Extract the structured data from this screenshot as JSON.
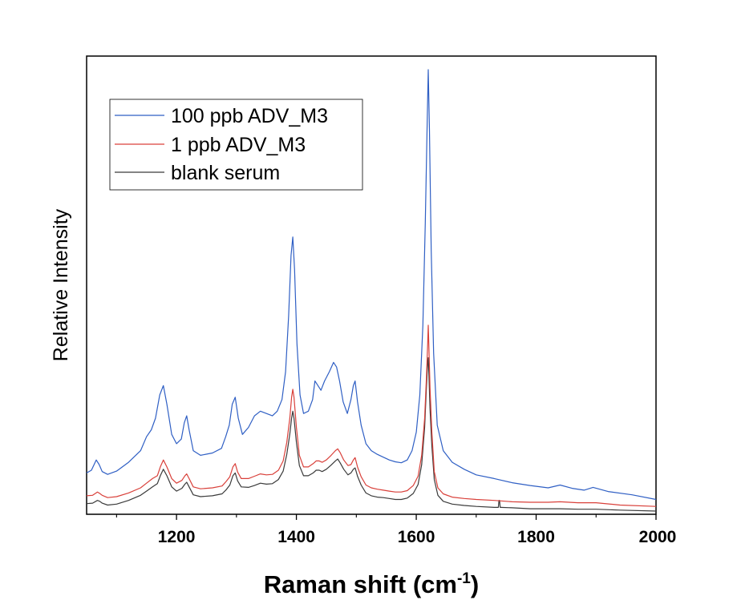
{
  "chart_data": {
    "type": "line",
    "xlabel": "Raman shift (cm",
    "xlabel_superscript": "-1",
    "xlabel_close": ")",
    "ylabel": "Relative Intensity",
    "xlim": [
      1050,
      2000
    ],
    "ylim": [
      0,
      100
    ],
    "xticks": [
      1200,
      1400,
      1600,
      1800,
      2000
    ],
    "xticks_minor": [
      1100,
      1300,
      1500,
      1700,
      1900
    ],
    "grid": false,
    "legend_position": "top-left",
    "series": [
      {
        "name": "100 ppb ADV_M3",
        "color": "#2f5fc4",
        "x": [
          1050,
          1058,
          1066,
          1071,
          1076,
          1085,
          1100,
          1120,
          1140,
          1150,
          1158,
          1165,
          1172,
          1178,
          1184,
          1192,
          1200,
          1208,
          1213,
          1217,
          1221,
          1228,
          1240,
          1260,
          1275,
          1282,
          1288,
          1293,
          1298,
          1303,
          1310,
          1320,
          1330,
          1340,
          1350,
          1360,
          1368,
          1376,
          1382,
          1387,
          1391,
          1394,
          1397,
          1401,
          1406,
          1412,
          1420,
          1427,
          1431,
          1436,
          1441,
          1447,
          1455,
          1462,
          1467,
          1472,
          1478,
          1485,
          1491,
          1495,
          1498,
          1502,
          1508,
          1516,
          1525,
          1535,
          1545,
          1555,
          1565,
          1575,
          1585,
          1593,
          1600,
          1606,
          1611,
          1615,
          1618,
          1620,
          1622,
          1625,
          1629,
          1635,
          1645,
          1660,
          1680,
          1700,
          1730,
          1760,
          1790,
          1820,
          1840,
          1860,
          1880,
          1895,
          1920,
          1960,
          2000
        ],
        "y": [
          8.2,
          8.8,
          11,
          10,
          8.5,
          7.9,
          8.6,
          10.5,
          13,
          16,
          17.5,
          20,
          25,
          27,
          23,
          16.5,
          14.5,
          15.5,
          19,
          20.5,
          17.5,
          13,
          12,
          12.5,
          13.5,
          16,
          18.5,
          23,
          24.5,
          20,
          16.5,
          18,
          20.5,
          21.5,
          21,
          20.5,
          21.5,
          24,
          30,
          42,
          55,
          59,
          52,
          36,
          25,
          21,
          21.5,
          24,
          28,
          27,
          26,
          28,
          30,
          32,
          31,
          28,
          23.5,
          21,
          24,
          27,
          28,
          23.5,
          18.5,
          14.5,
          13,
          12.2,
          11.6,
          11,
          10.6,
          10.4,
          11,
          13,
          17,
          25,
          40,
          62,
          82,
          95,
          82,
          56,
          34,
          18.5,
          13,
          10.5,
          9,
          7.8,
          7,
          6.1,
          5.5,
          5,
          5.6,
          4.9,
          4.5,
          5.1,
          4.2,
          3.5,
          2.5
        ]
      },
      {
        "name": "1 ppb ADV_M3",
        "color": "#d9403a",
        "x": [
          1050,
          1060,
          1068,
          1072,
          1076,
          1085,
          1100,
          1120,
          1140,
          1150,
          1160,
          1168,
          1173,
          1178,
          1184,
          1192,
          1200,
          1209,
          1214,
          1217,
          1221,
          1228,
          1240,
          1260,
          1276,
          1283,
          1289,
          1294,
          1298,
          1302,
          1308,
          1320,
          1330,
          1340,
          1350,
          1360,
          1370,
          1378,
          1384,
          1389,
          1392,
          1394,
          1396,
          1400,
          1405,
          1412,
          1420,
          1428,
          1433,
          1438,
          1443,
          1450,
          1458,
          1465,
          1469,
          1473,
          1479,
          1486,
          1491,
          1495,
          1498,
          1502,
          1508,
          1516,
          1525,
          1535,
          1545,
          1555,
          1565,
          1575,
          1585,
          1595,
          1603,
          1609,
          1614,
          1617,
          1619,
          1620,
          1621,
          1623,
          1626,
          1630,
          1636,
          1645,
          1660,
          1680,
          1700,
          1730,
          1760,
          1790,
          1820,
          1840,
          1870,
          1900,
          1940,
          2000
        ],
        "y": [
          3.3,
          3.4,
          4.1,
          3.8,
          3.4,
          2.9,
          3.1,
          3.9,
          5,
          6,
          7,
          7.6,
          9.5,
          11,
          9.5,
          7,
          6,
          6.6,
          7.6,
          8,
          7,
          5.2,
          4.8,
          5,
          5.4,
          6.4,
          7.4,
          9.5,
          10.2,
          8.4,
          7,
          7,
          7.5,
          8,
          7.8,
          7.9,
          8.8,
          10.8,
          14.8,
          20,
          24.5,
          26.2,
          24.5,
          18,
          12,
          9.5,
          9.5,
          10.2,
          10.8,
          10.8,
          10.5,
          11,
          12,
          13,
          13.4,
          12.6,
          11,
          9.8,
          10,
          11,
          11.5,
          9.5,
          7.4,
          5.6,
          5,
          4.7,
          4.5,
          4.3,
          4.1,
          4.1,
          4.4,
          5.5,
          7.5,
          12,
          20,
          29,
          36,
          40,
          36,
          26.5,
          17,
          8.5,
          5,
          3.7,
          3,
          2.7,
          2.5,
          2.3,
          2,
          1.9,
          1.9,
          2,
          1.8,
          1.8,
          1.3,
          1
        ]
      },
      {
        "name": "blank serum",
        "color": "#3a3a3a",
        "x": [
          1050,
          1060,
          1068,
          1072,
          1076,
          1085,
          1100,
          1120,
          1140,
          1150,
          1160,
          1168,
          1173,
          1178,
          1184,
          1192,
          1200,
          1209,
          1214,
          1217,
          1221,
          1228,
          1240,
          1260,
          1276,
          1283,
          1289,
          1294,
          1298,
          1302,
          1308,
          1320,
          1330,
          1340,
          1350,
          1360,
          1370,
          1378,
          1384,
          1389,
          1392,
          1394,
          1396,
          1400,
          1405,
          1412,
          1420,
          1428,
          1433,
          1438,
          1443,
          1450,
          1458,
          1465,
          1469,
          1473,
          1479,
          1486,
          1491,
          1495,
          1498,
          1502,
          1508,
          1516,
          1525,
          1535,
          1545,
          1555,
          1565,
          1575,
          1585,
          1595,
          1603,
          1609,
          1614,
          1617,
          1619,
          1620,
          1621,
          1623,
          1626,
          1630,
          1636,
          1645,
          1660,
          1680,
          1700,
          1730,
          1737,
          1738,
          1739,
          1740,
          1741,
          1760,
          1790,
          1820,
          1840,
          1870,
          1900,
          1940,
          2000
        ],
        "y": [
          1.6,
          1.7,
          2.3,
          2.1,
          1.7,
          1.3,
          1.5,
          2.3,
          3.4,
          4.3,
          5.2,
          5.9,
          7.6,
          9,
          7.6,
          5.2,
          4.3,
          4.9,
          5.8,
          6.2,
          5.2,
          3.5,
          3.1,
          3.3,
          3.7,
          4.6,
          5.6,
          7.6,
          8.2,
          6.5,
          5.2,
          5.1,
          5.5,
          6,
          5.8,
          5.9,
          6.8,
          8.6,
          12.2,
          16.6,
          20,
          21.5,
          20,
          14.8,
          9.8,
          7.6,
          7.6,
          8.2,
          8.8,
          8.8,
          8.5,
          9,
          9.9,
          10.8,
          11.2,
          10.4,
          9,
          7.8,
          8.2,
          9,
          9.3,
          7.5,
          5.6,
          3.9,
          3.3,
          3,
          2.9,
          2.7,
          2.5,
          2.5,
          2.8,
          3.8,
          5.7,
          10,
          18,
          27,
          32,
          33,
          30,
          22,
          14,
          6.8,
          3.4,
          2.1,
          1.5,
          1.2,
          1,
          0.8,
          0.8,
          2.3,
          2.3,
          0.8,
          0.8,
          0.7,
          0.5,
          0.5,
          0.5,
          0.4,
          0.4,
          0.2,
          0
        ]
      }
    ]
  }
}
